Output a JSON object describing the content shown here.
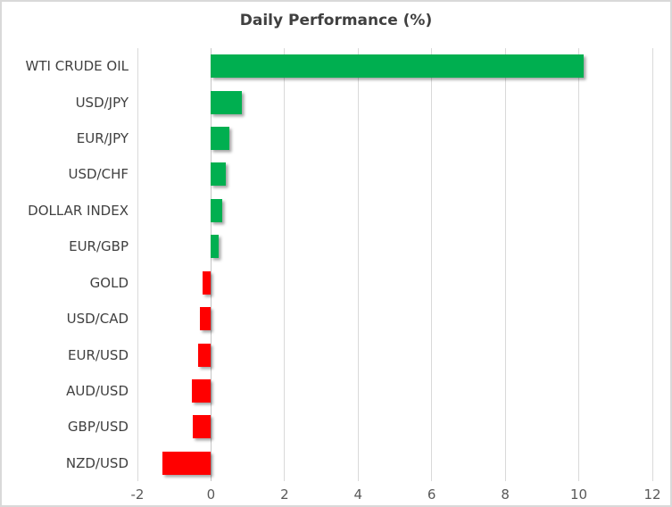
{
  "title": "Daily Performance (%)",
  "colors": {
    "positive_bar": "#00AF50",
    "negative_bar": "#FF0000",
    "gridline": "#D9D9D9",
    "zero_line": "#C6C6C6",
    "title_text": "#404040",
    "category_text": "#404040",
    "tick_text": "#595959",
    "frame_border": "#D9D9D9",
    "background": "#FFFFFF"
  },
  "chart_data": {
    "type": "bar",
    "orientation": "horizontal",
    "title": "Daily Performance (%)",
    "categories": [
      "WTI CRUDE OIL",
      "USD/JPY",
      "EUR/JPY",
      "USD/CHF",
      "DOLLAR INDEX",
      "EUR/GBP",
      "GOLD",
      "USD/CAD",
      "EUR/USD",
      "AUD/USD",
      "GBP/USD",
      "NZD/USD"
    ],
    "values": [
      10.13,
      0.85,
      0.5,
      0.4,
      0.31,
      0.22,
      -0.23,
      -0.29,
      -0.34,
      -0.52,
      -0.5,
      -1.32
    ],
    "xlabel": "",
    "ylabel": "",
    "xlim": [
      -2,
      12
    ],
    "xticks": [
      -2,
      0,
      2,
      4,
      6,
      8,
      10,
      12
    ],
    "xtick_labels": [
      "-2",
      "0",
      "2",
      "4",
      "6",
      "8",
      "10",
      "12"
    ],
    "grid": true,
    "legend": false,
    "positive_color": "#00AF50",
    "negative_color": "#FF0000"
  }
}
